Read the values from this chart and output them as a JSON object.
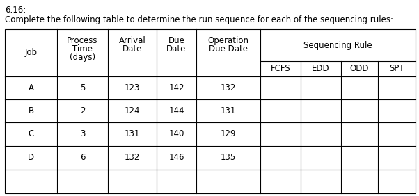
{
  "title_line1": "6.16:",
  "title_line2": "Complete the following table to determine the run sequence for each of the sequencing rules:",
  "jobs": [
    "A",
    "B",
    "C",
    "D"
  ],
  "proc_times": [
    "5",
    "2",
    "3",
    "6"
  ],
  "arrivals": [
    "123",
    "124",
    "131",
    "132"
  ],
  "due_dates": [
    "142",
    "144",
    "140",
    "146"
  ],
  "op_due_dates": [
    "132",
    "131",
    "129",
    "135"
  ],
  "seq_labels": [
    "FCFS",
    "EDD",
    "ODD",
    "SPT"
  ],
  "bg_color": "#ffffff",
  "text_color": "#000000",
  "line_color": "#000000",
  "font_size": 8.5,
  "title_font_size": 8.5
}
